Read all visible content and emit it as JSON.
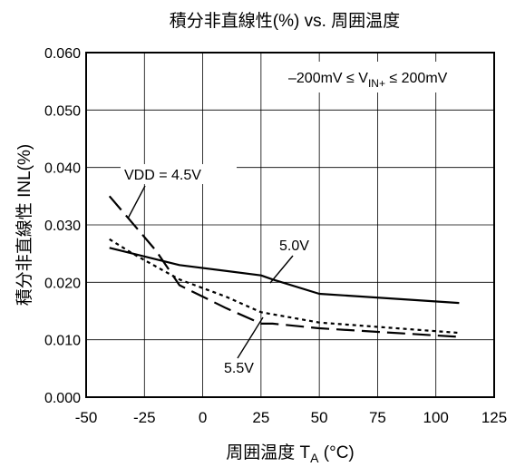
{
  "chart_data": {
    "type": "line",
    "title": "積分非直線性(%) vs. 周囲温度",
    "xlabel": {
      "main": "周囲温度  T",
      "sub": "A",
      "unit": " (°C)"
    },
    "ylabel": "積分非直線性  INL(%)",
    "xlim": [
      -50,
      125
    ],
    "ylim": [
      0.0,
      0.06
    ],
    "x_ticks": [
      -50,
      -25,
      0,
      25,
      50,
      75,
      100,
      125
    ],
    "x_tick_labels": [
      "-50",
      "-25",
      "0",
      "25",
      "50",
      "75",
      "100",
      "125"
    ],
    "y_ticks": [
      0.0,
      0.01,
      0.02,
      0.03,
      0.04,
      0.05,
      0.06
    ],
    "y_tick_labels": [
      "0.000",
      "0.010",
      "0.020",
      "0.030",
      "0.040",
      "0.050",
      "0.060"
    ],
    "grid": true,
    "condition": {
      "pre": "–200mV ≤ V",
      "sub": "IN+",
      "post": " ≤ 200mV"
    },
    "series": [
      {
        "name": "5.0V",
        "style": "solid",
        "x": [
          -40,
          -10,
          25,
          30,
          50,
          110
        ],
        "y": [
          0.026,
          0.023,
          0.0212,
          0.0205,
          0.018,
          0.0164
        ]
      },
      {
        "name": "5.5V",
        "style": "dotted",
        "x": [
          -40,
          -30,
          -10,
          10,
          25,
          50,
          110
        ],
        "y": [
          0.0275,
          0.025,
          0.0205,
          0.0175,
          0.0148,
          0.013,
          0.0112
        ]
      },
      {
        "name": "VDD = 4.5V",
        "style": "dashed",
        "x": [
          -40,
          -20,
          -10,
          10,
          25,
          30,
          50,
          110
        ],
        "y": [
          0.035,
          0.0255,
          0.0195,
          0.0155,
          0.0128,
          0.0128,
          0.012,
          0.0105
        ]
      }
    ],
    "annotations": [
      {
        "text": "VDD = 4.5V",
        "series": "VDD = 4.5V"
      },
      {
        "text": "5.0V",
        "series": "5.0V"
      },
      {
        "text": "5.5V",
        "series": "5.5V"
      }
    ]
  }
}
